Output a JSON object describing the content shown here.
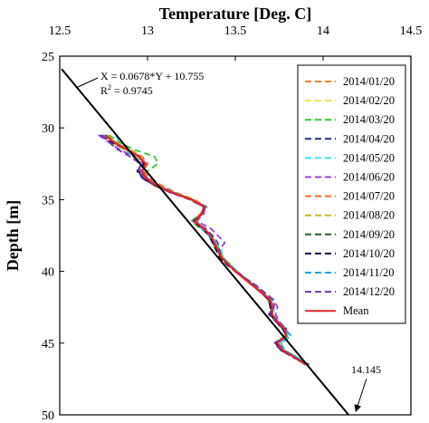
{
  "chart_data": {
    "type": "line",
    "title": "",
    "xlabel": "Temperature [Deg. C]",
    "ylabel": "Depth [m]",
    "xlim": [
      12.5,
      14.5
    ],
    "ylim": [
      25,
      50
    ],
    "y_inverted": true,
    "x_axis_position": "top",
    "x_ticks": [
      "12.5",
      "13",
      "13.5",
      "14",
      "14.5"
    ],
    "y_ticks": [
      "25",
      "30",
      "35",
      "40",
      "45",
      "50"
    ],
    "grid": false,
    "legend_position": "top-right",
    "regression": {
      "equation": "X = 0.0678*Y + 10.755",
      "r2_prefix": "R",
      "r2_sup": "2",
      "r2_value": " = 0.9745",
      "slope": 0.0678,
      "intercept": 10.755,
      "y_range": [
        25.9,
        50
      ],
      "color": "#000000"
    },
    "annotation": {
      "text": "14.145",
      "x": 14.145,
      "y": 50
    },
    "depths": [
      30.5,
      31.0,
      31.5,
      32.0,
      32.5,
      33.0,
      33.5,
      34.0,
      34.5,
      35.0,
      35.5,
      36.0,
      36.5,
      37.0,
      37.5,
      38.0,
      38.5,
      39.0,
      39.5,
      40.0,
      40.5,
      41.0,
      41.5,
      42.0,
      42.5,
      43.0,
      43.5,
      44.0,
      44.5,
      45.0,
      45.5,
      46.0,
      46.5
    ],
    "series": [
      {
        "name": "2014/01/20",
        "color": "#ff7f2a",
        "dash": true,
        "values": [
          12.76,
          12.8,
          12.88,
          12.95,
          13.0,
          12.97,
          12.99,
          13.03,
          13.13,
          13.25,
          13.33,
          13.3,
          13.26,
          13.32,
          13.36,
          13.38,
          13.4,
          13.42,
          13.46,
          13.5,
          13.55,
          13.6,
          13.66,
          13.7,
          13.72,
          13.7,
          13.74,
          13.78,
          13.78,
          13.74,
          13.78,
          13.84,
          13.9
        ]
      },
      {
        "name": "2014/02/20",
        "color": "#f5e642",
        "dash": true,
        "values": [
          12.75,
          12.79,
          12.86,
          12.94,
          12.99,
          12.97,
          12.98,
          13.04,
          13.14,
          13.24,
          13.32,
          13.31,
          13.27,
          13.31,
          13.35,
          13.38,
          13.41,
          13.43,
          13.46,
          13.5,
          13.56,
          13.61,
          13.65,
          13.69,
          13.71,
          13.71,
          13.74,
          13.77,
          13.79,
          13.73,
          13.77,
          13.85,
          13.91
        ]
      },
      {
        "name": "2014/03/20",
        "color": "#2ecc2e",
        "dash": true,
        "values": [
          12.78,
          12.84,
          12.92,
          13.04,
          13.06,
          13.0,
          12.99,
          13.05,
          13.15,
          13.26,
          13.33,
          13.3,
          13.25,
          13.3,
          13.36,
          13.39,
          13.41,
          13.43,
          13.47,
          13.51,
          13.56,
          13.61,
          13.66,
          13.7,
          13.71,
          13.7,
          13.73,
          13.78,
          13.8,
          13.74,
          13.77,
          13.84,
          13.89
        ]
      },
      {
        "name": "2014/04/20",
        "color": "#1f2f8c",
        "dash": true,
        "values": [
          12.73,
          12.79,
          12.88,
          12.96,
          12.98,
          12.94,
          12.97,
          13.04,
          13.13,
          13.25,
          13.32,
          13.31,
          13.27,
          13.32,
          13.35,
          13.38,
          13.39,
          13.42,
          13.45,
          13.5,
          13.55,
          13.6,
          13.65,
          13.69,
          13.7,
          13.7,
          13.74,
          13.79,
          13.79,
          13.73,
          13.76,
          13.84,
          13.92
        ]
      },
      {
        "name": "2014/05/20",
        "color": "#3de0f0",
        "dash": true,
        "values": [
          12.82,
          12.84,
          12.86,
          12.92,
          12.98,
          12.97,
          13.0,
          13.06,
          13.16,
          13.26,
          13.34,
          13.31,
          13.28,
          13.32,
          13.37,
          13.39,
          13.42,
          13.43,
          13.47,
          13.51,
          13.56,
          13.61,
          13.66,
          13.71,
          13.72,
          13.72,
          13.75,
          13.79,
          13.8,
          13.76,
          13.78,
          13.86,
          13.9
        ]
      },
      {
        "name": "2014/06/20",
        "color": "#a040d0",
        "dash": true,
        "values": [
          12.72,
          12.78,
          12.84,
          12.92,
          12.98,
          12.96,
          13.0,
          13.05,
          13.13,
          13.25,
          13.33,
          13.32,
          13.28,
          13.36,
          13.4,
          13.44,
          13.41,
          13.42,
          13.46,
          13.51,
          13.56,
          13.62,
          13.66,
          13.72,
          13.74,
          13.73,
          13.75,
          13.79,
          13.79,
          13.74,
          13.76,
          13.83,
          13.91
        ]
      },
      {
        "name": "2014/07/20",
        "color": "#ff6a2a",
        "dash": true,
        "values": [
          12.76,
          12.82,
          12.9,
          12.97,
          13.0,
          12.98,
          13.01,
          13.08,
          13.16,
          13.27,
          13.33,
          13.3,
          13.26,
          13.31,
          13.36,
          13.38,
          13.41,
          13.42,
          13.46,
          13.5,
          13.56,
          13.61,
          13.66,
          13.7,
          13.71,
          13.7,
          13.74,
          13.78,
          13.79,
          13.74,
          13.78,
          13.85,
          13.9
        ]
      },
      {
        "name": "2014/08/20",
        "color": "#c9b82a",
        "dash": true,
        "values": [
          12.77,
          12.82,
          12.89,
          12.96,
          12.99,
          12.97,
          12.99,
          13.05,
          13.15,
          13.26,
          13.33,
          13.31,
          13.27,
          13.32,
          13.35,
          13.38,
          13.4,
          13.43,
          13.46,
          13.5,
          13.55,
          13.6,
          13.65,
          13.7,
          13.71,
          13.71,
          13.74,
          13.78,
          13.78,
          13.73,
          13.77,
          13.84,
          13.9
        ]
      },
      {
        "name": "2014/09/20",
        "color": "#1f5f2a",
        "dash": true,
        "values": [
          12.76,
          12.81,
          12.88,
          12.95,
          12.99,
          12.97,
          12.98,
          13.05,
          13.14,
          13.25,
          13.33,
          13.31,
          13.27,
          13.31,
          13.35,
          13.37,
          13.4,
          13.42,
          13.46,
          13.5,
          13.55,
          13.6,
          13.65,
          13.69,
          13.71,
          13.7,
          13.73,
          13.77,
          13.79,
          13.74,
          13.77,
          13.84,
          13.9
        ]
      },
      {
        "name": "2014/10/20",
        "color": "#10104a",
        "dash": true,
        "values": [
          12.74,
          12.8,
          12.88,
          12.95,
          12.98,
          12.95,
          12.97,
          13.04,
          13.14,
          13.25,
          13.32,
          13.31,
          13.26,
          13.31,
          13.35,
          13.37,
          13.39,
          13.41,
          13.45,
          13.5,
          13.55,
          13.6,
          13.65,
          13.69,
          13.7,
          13.7,
          13.73,
          13.77,
          13.79,
          13.73,
          13.76,
          13.84,
          13.91
        ]
      },
      {
        "name": "2014/11/20",
        "color": "#1aa3e8",
        "dash": true,
        "values": [
          12.75,
          12.81,
          12.88,
          12.95,
          12.99,
          12.97,
          12.99,
          13.05,
          13.15,
          13.25,
          13.33,
          13.31,
          13.27,
          13.31,
          13.35,
          13.38,
          13.4,
          13.42,
          13.46,
          13.5,
          13.55,
          13.6,
          13.65,
          13.7,
          13.71,
          13.71,
          13.74,
          13.78,
          13.82,
          13.76,
          13.78,
          13.85,
          13.9
        ]
      },
      {
        "name": "2014/12/20",
        "color": "#6a3aa8",
        "dash": true,
        "values": [
          12.74,
          12.78,
          12.83,
          12.9,
          12.96,
          12.95,
          12.98,
          13.04,
          13.13,
          13.24,
          13.32,
          13.31,
          13.26,
          13.33,
          13.37,
          13.4,
          13.41,
          13.42,
          13.46,
          13.5,
          13.56,
          13.62,
          13.67,
          13.72,
          13.72,
          13.69,
          13.73,
          13.78,
          13.79,
          13.72,
          13.76,
          13.83,
          13.92
        ]
      },
      {
        "name": "Mean",
        "color": "#e3242b",
        "dash": false,
        "values": [
          12.76,
          12.81,
          12.88,
          12.95,
          12.99,
          12.97,
          12.99,
          13.05,
          13.14,
          13.25,
          13.33,
          13.31,
          13.27,
          13.32,
          13.36,
          13.38,
          13.4,
          13.42,
          13.46,
          13.5,
          13.55,
          13.6,
          13.65,
          13.7,
          13.71,
          13.71,
          13.74,
          13.78,
          13.79,
          13.74,
          13.77,
          13.84,
          13.9
        ]
      }
    ]
  }
}
